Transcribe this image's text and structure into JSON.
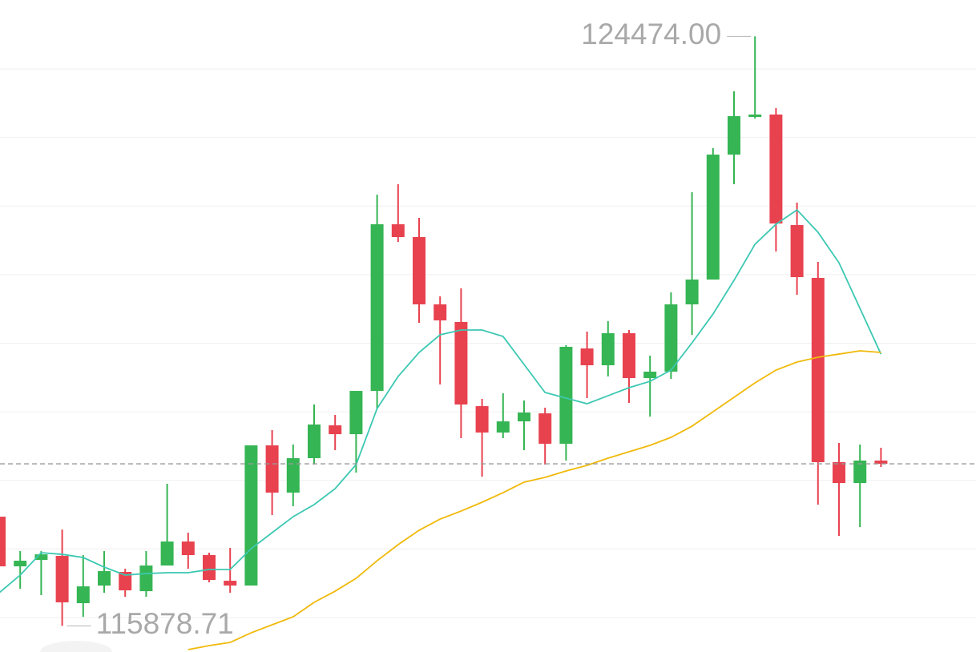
{
  "chart_data": {
    "type": "candlestick",
    "ylim": [
      115497,
      125004
    ],
    "gridlines": [
      116000,
      117000,
      118000,
      119000,
      120000,
      121000,
      122000,
      123000,
      124000
    ],
    "price_line": 118241,
    "up_color": "#35b553",
    "down_color": "#e8424f",
    "open": [
      117470,
      116746,
      116840,
      116898,
      116209,
      116466,
      116665,
      116384,
      116758,
      117108,
      116910,
      116536,
      116466,
      118510,
      117821,
      118323,
      118802,
      118673,
      119304,
      121734,
      121547,
      120566,
      120309,
      119082,
      118697,
      118860,
      118977,
      118533,
      119923,
      119678,
      120145,
      119491,
      119585,
      120566,
      120928,
      122750,
      123299,
      123334,
      121722,
      120951,
      118265,
      117961,
      118288
    ],
    "high": [
      117529,
      116968,
      116968,
      117283,
      116910,
      116968,
      116711,
      116968,
      117949,
      117237,
      116945,
      117015,
      118510,
      118732,
      118522,
      119106,
      118954,
      119304,
      122166,
      122318,
      121827,
      120682,
      120799,
      119187,
      119269,
      119164,
      119059,
      119970,
      120169,
      120320,
      120192,
      119818,
      120741,
      122201,
      122843,
      123672,
      124474,
      123427,
      122049,
      121185,
      118545,
      118522,
      118475
    ],
    "low": [
      116688,
      116419,
      116326,
      115878.71,
      116010,
      116361,
      116302,
      116302,
      116758,
      116711,
      116513,
      116361,
      116466,
      117494,
      117622,
      118230,
      118440,
      118113,
      119047,
      121477,
      120297,
      119398,
      118615,
      118054,
      118615,
      118440,
      118230,
      118288,
      119199,
      119514,
      119129,
      118930,
      119479,
      120122,
      120928,
      122318,
      123275,
      121336,
      120706,
      117646,
      117190,
      117319,
      118195
    ],
    "close": [
      116746,
      116828,
      116921,
      116221,
      116454,
      116676,
      116396,
      116758,
      117108,
      116910,
      116548,
      116466,
      118510,
      117821,
      118323,
      118814,
      118673,
      119304,
      121734,
      121547,
      120566,
      120332,
      119106,
      118697,
      118860,
      118989,
      118533,
      119947,
      119678,
      120145,
      119491,
      119585,
      120566,
      120928,
      122750,
      123310,
      123334,
      121745,
      120963,
      118265,
      117961,
      118288,
      118241
    ],
    "series": [
      {
        "color": "#3cc8b2",
        "values": [
          116361,
          116618,
          116945,
          116921,
          116875,
          116735,
          116618,
          116641,
          116653,
          116653,
          116700,
          116700,
          117003,
          117237,
          117470,
          117646,
          117879,
          118230,
          119047,
          119514,
          119865,
          120122,
          120192,
          120192,
          120098,
          119690,
          119281,
          119199,
          119117,
          119234,
          119351,
          119444,
          119608,
          120005,
          120425,
          120916,
          121442,
          121734,
          121944,
          121617,
          121173,
          120507,
          119841
        ]
      },
      {
        "color": "#f0b90b",
        "values": [
          null,
          null,
          null,
          null,
          null,
          null,
          null,
          null,
          null,
          115532,
          115590,
          115637,
          115777,
          115894,
          116010,
          116221,
          116384,
          116571,
          116828,
          117062,
          117272,
          117435,
          117552,
          117681,
          117821,
          117973,
          118043,
          118136,
          118218,
          118323,
          118417,
          118510,
          118627,
          118790,
          119000,
          119211,
          119421,
          119608,
          119725,
          119795,
          119841,
          119888,
          119865
        ]
      }
    ],
    "annotations": [
      {
        "value": 124474,
        "label": "124474.00",
        "side": "left"
      },
      {
        "value": 115878.71,
        "label": "115878.71",
        "side": "right"
      }
    ]
  }
}
